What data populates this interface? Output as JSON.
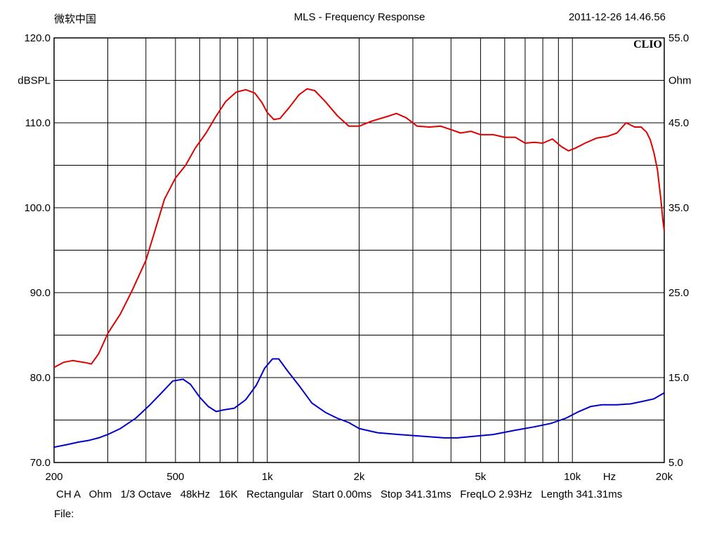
{
  "header": {
    "left": "微软中国",
    "center": "MLS - Frequency Response",
    "right": "2011-12-26 14.46.56"
  },
  "brand": "CLIO",
  "footer": {
    "line": "CH A   Ohm   1/3 Octave   48kHz   16K   Rectangular   Start 0.00ms   Stop 341.31ms   FreqLO 2.93Hz   Length 341.31ms",
    "file_label": "File:"
  },
  "chart_data": {
    "type": "line",
    "grid": true,
    "x_scale": "log",
    "xlim": [
      200,
      20000
    ],
    "x_ticks": [
      {
        "value": 200,
        "label": "200"
      },
      {
        "value": 500,
        "label": "500"
      },
      {
        "value": 1000,
        "label": "1k"
      },
      {
        "value": 2000,
        "label": "2k"
      },
      {
        "value": 5000,
        "label": "5k"
      },
      {
        "value": 10000,
        "label": "10k"
      },
      {
        "value": 20000,
        "label": "20k"
      }
    ],
    "xlabel": "Hz",
    "ylim_left": [
      70,
      120
    ],
    "y_ticks_left": [
      {
        "value": 70,
        "label": "70.0"
      },
      {
        "value": 80,
        "label": "80.0"
      },
      {
        "value": 90,
        "label": "90.0"
      },
      {
        "value": 100,
        "label": "100.0"
      },
      {
        "value": 110,
        "label": "110.0"
      },
      {
        "value": 120,
        "label": "120.0"
      }
    ],
    "ylabel_left": "dBSPL",
    "ylim_right": [
      5,
      55
    ],
    "y_ticks_right": [
      {
        "value": 5,
        "label": "5.0"
      },
      {
        "value": 15,
        "label": "15.0"
      },
      {
        "value": 25,
        "label": "25.0"
      },
      {
        "value": 35,
        "label": "35.0"
      },
      {
        "value": 45,
        "label": "45.0"
      },
      {
        "value": 55,
        "label": "55.0"
      }
    ],
    "ylabel_right": "Ohm",
    "series": [
      {
        "axis": "left",
        "color": "#e00000",
        "points": [
          [
            200,
            81.2
          ],
          [
            215,
            81.8
          ],
          [
            230,
            82.0
          ],
          [
            250,
            81.8
          ],
          [
            265,
            81.6
          ],
          [
            280,
            82.8
          ],
          [
            300,
            85.2
          ],
          [
            330,
            87.5
          ],
          [
            360,
            90.2
          ],
          [
            400,
            93.8
          ],
          [
            430,
            97.5
          ],
          [
            460,
            101.0
          ],
          [
            500,
            103.5
          ],
          [
            540,
            105.0
          ],
          [
            580,
            107.0
          ],
          [
            630,
            108.8
          ],
          [
            680,
            110.8
          ],
          [
            730,
            112.5
          ],
          [
            790,
            113.6
          ],
          [
            850,
            113.9
          ],
          [
            910,
            113.5
          ],
          [
            960,
            112.4
          ],
          [
            1000,
            111.2
          ],
          [
            1050,
            110.4
          ],
          [
            1100,
            110.5
          ],
          [
            1180,
            111.8
          ],
          [
            1270,
            113.3
          ],
          [
            1350,
            114.0
          ],
          [
            1430,
            113.8
          ],
          [
            1550,
            112.5
          ],
          [
            1700,
            110.8
          ],
          [
            1850,
            109.6
          ],
          [
            2000,
            109.6
          ],
          [
            2200,
            110.2
          ],
          [
            2450,
            110.7
          ],
          [
            2650,
            111.1
          ],
          [
            2850,
            110.6
          ],
          [
            3100,
            109.6
          ],
          [
            3400,
            109.5
          ],
          [
            3700,
            109.6
          ],
          [
            4000,
            109.2
          ],
          [
            4300,
            108.8
          ],
          [
            4650,
            109.0
          ],
          [
            5000,
            108.6
          ],
          [
            5500,
            108.6
          ],
          [
            6000,
            108.3
          ],
          [
            6500,
            108.3
          ],
          [
            7000,
            107.6
          ],
          [
            7500,
            107.7
          ],
          [
            8000,
            107.6
          ],
          [
            8600,
            108.1
          ],
          [
            9200,
            107.2
          ],
          [
            9700,
            106.7
          ],
          [
            10200,
            107.0
          ],
          [
            11000,
            107.6
          ],
          [
            12000,
            108.2
          ],
          [
            13000,
            108.4
          ],
          [
            14000,
            108.8
          ],
          [
            15000,
            110.0
          ],
          [
            16000,
            109.5
          ],
          [
            16800,
            109.5
          ],
          [
            17500,
            108.9
          ],
          [
            18000,
            108.0
          ],
          [
            18500,
            106.5
          ],
          [
            19000,
            104.5
          ],
          [
            19500,
            101.0
          ],
          [
            19800,
            98.5
          ],
          [
            20000,
            97.3
          ]
        ]
      },
      {
        "axis": "right",
        "color": "#0000c8",
        "points": [
          [
            200,
            6.8
          ],
          [
            220,
            7.1
          ],
          [
            240,
            7.4
          ],
          [
            260,
            7.6
          ],
          [
            280,
            7.9
          ],
          [
            300,
            8.3
          ],
          [
            330,
            9.0
          ],
          [
            370,
            10.2
          ],
          [
            410,
            11.7
          ],
          [
            450,
            13.2
          ],
          [
            490,
            14.6
          ],
          [
            530,
            14.8
          ],
          [
            560,
            14.2
          ],
          [
            600,
            12.7
          ],
          [
            640,
            11.6
          ],
          [
            680,
            11.0
          ],
          [
            720,
            11.2
          ],
          [
            780,
            11.4
          ],
          [
            850,
            12.4
          ],
          [
            920,
            14.1
          ],
          [
            980,
            16.1
          ],
          [
            1040,
            17.2
          ],
          [
            1090,
            17.2
          ],
          [
            1170,
            15.7
          ],
          [
            1280,
            13.9
          ],
          [
            1400,
            12.0
          ],
          [
            1550,
            10.9
          ],
          [
            1700,
            10.2
          ],
          [
            1850,
            9.7
          ],
          [
            2000,
            9.0
          ],
          [
            2300,
            8.5
          ],
          [
            2700,
            8.3
          ],
          [
            3200,
            8.1
          ],
          [
            3800,
            7.9
          ],
          [
            4200,
            7.9
          ],
          [
            4800,
            8.1
          ],
          [
            5500,
            8.3
          ],
          [
            6500,
            8.8
          ],
          [
            7500,
            9.2
          ],
          [
            8500,
            9.6
          ],
          [
            9500,
            10.2
          ],
          [
            10500,
            11.0
          ],
          [
            11500,
            11.6
          ],
          [
            12500,
            11.8
          ],
          [
            14000,
            11.8
          ],
          [
            15500,
            11.9
          ],
          [
            17000,
            12.2
          ],
          [
            18500,
            12.5
          ],
          [
            20000,
            13.2
          ]
        ]
      }
    ]
  }
}
